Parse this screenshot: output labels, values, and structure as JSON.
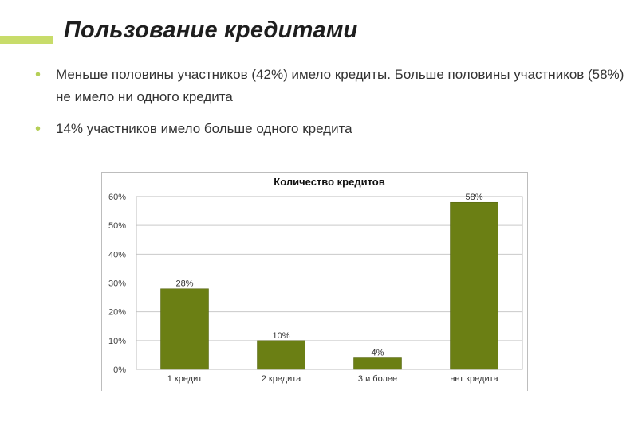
{
  "slide": {
    "title": "Пользование кредитами",
    "bullets": [
      "Меньше половины участников (42%) имело кредиты. Больше половины участников (58%) не имело ни одного кредита",
      "14% участников имело больше одного кредита"
    ]
  },
  "colors": {
    "accent": "#c8dc6a",
    "bullet": "#b5cf57",
    "bar": "#6b7f14"
  },
  "chart_data": {
    "type": "bar",
    "title": "Количество кредитов",
    "xlabel": "",
    "ylabel": "",
    "categories": [
      "1 кредит",
      "2 кредита",
      "3 и более",
      "нет кредита"
    ],
    "values": [
      28,
      10,
      4,
      58
    ],
    "data_labels": [
      "28%",
      "10%",
      "4%",
      "58%"
    ],
    "ylim": [
      0,
      60
    ],
    "y_ticks": [
      0,
      10,
      20,
      30,
      40,
      50,
      60
    ],
    "y_tick_labels": [
      "0%",
      "10%",
      "20%",
      "30%",
      "40%",
      "50%",
      "60%"
    ],
    "grid": true,
    "legend": "none"
  }
}
